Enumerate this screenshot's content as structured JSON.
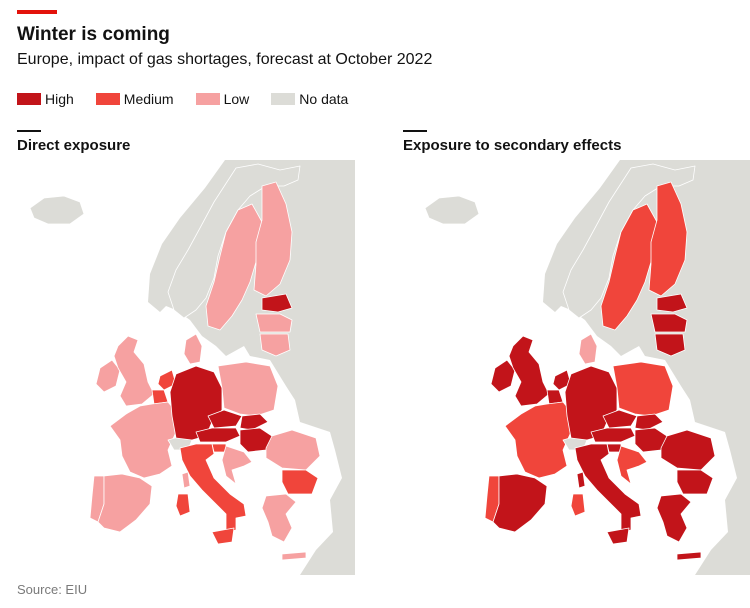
{
  "header": {
    "title": "Winter is coming",
    "subtitle": "Europe, impact of gas shortages, forecast at October 2022"
  },
  "legend": [
    {
      "label": "High",
      "color": "#c2141a"
    },
    {
      "label": "Medium",
      "color": "#f0453b"
    },
    {
      "label": "Low",
      "color": "#f6a1a1"
    },
    {
      "label": "No data",
      "color": "#dcdcd7"
    }
  ],
  "colors": {
    "sea": "#ffffff",
    "border": "#ffffff",
    "accent": "#e3120b"
  },
  "panels": [
    {
      "title": "Direct exposure",
      "regions": {
        "landmass": "nodata",
        "iceland": "nodata",
        "ireland": "low",
        "uk": "low",
        "norway": "nodata",
        "sweden": "low",
        "finland": "low",
        "estonia": "high",
        "latvia": "low",
        "lithuania": "low",
        "denmark": "low",
        "netherlands": "medium",
        "belgium": "medium",
        "france": "low",
        "spain": "low",
        "portugal": "low",
        "germany": "high",
        "poland": "low",
        "czechia": "high",
        "austria": "high",
        "slovakia": "high",
        "hungary": "high",
        "switzerland": "nodata",
        "italy": "medium",
        "slovenia": "medium",
        "croatia": "low",
        "romania": "low",
        "bulgaria": "medium",
        "greece": "low",
        "sardinia": "medium",
        "sicily": "medium",
        "corsica": "low",
        "crete": "low"
      }
    },
    {
      "title": "Exposure to secondary effects",
      "regions": {
        "landmass": "nodata",
        "iceland": "nodata",
        "ireland": "high",
        "uk": "high",
        "norway": "nodata",
        "sweden": "medium",
        "finland": "medium",
        "estonia": "high",
        "latvia": "high",
        "lithuania": "high",
        "denmark": "low",
        "netherlands": "high",
        "belgium": "high",
        "france": "medium",
        "spain": "high",
        "portugal": "medium",
        "germany": "high",
        "poland": "medium",
        "czechia": "high",
        "austria": "high",
        "slovakia": "high",
        "hungary": "high",
        "switzerland": "nodata",
        "italy": "high",
        "slovenia": "high",
        "croatia": "medium",
        "romania": "high",
        "bulgaria": "high",
        "greece": "high",
        "sardinia": "medium",
        "sicily": "high",
        "corsica": "high",
        "crete": "high"
      }
    }
  ],
  "source": "Source: EIU"
}
